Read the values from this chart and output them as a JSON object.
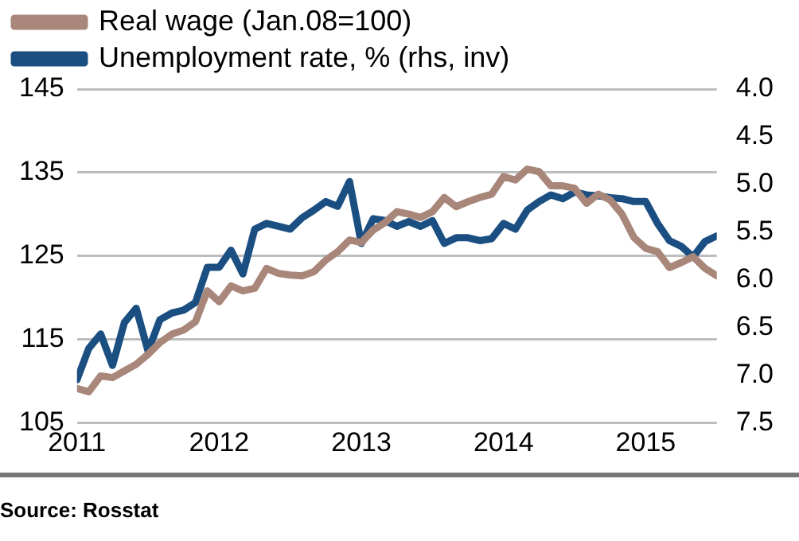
{
  "chart_data": {
    "type": "line",
    "x": [
      "2011-01",
      "2011-02",
      "2011-03",
      "2011-04",
      "2011-05",
      "2011-06",
      "2011-07",
      "2011-08",
      "2011-09",
      "2011-10",
      "2011-11",
      "2011-12",
      "2012-01",
      "2012-02",
      "2012-03",
      "2012-04",
      "2012-05",
      "2012-06",
      "2012-07",
      "2012-08",
      "2012-09",
      "2012-10",
      "2012-11",
      "2012-12",
      "2013-01",
      "2013-02",
      "2013-03",
      "2013-04",
      "2013-05",
      "2013-06",
      "2013-07",
      "2013-08",
      "2013-09",
      "2013-10",
      "2013-11",
      "2013-12",
      "2014-01",
      "2014-02",
      "2014-03",
      "2014-04",
      "2014-05",
      "2014-06",
      "2014-07",
      "2014-08",
      "2014-09",
      "2014-10",
      "2014-11",
      "2014-12",
      "2015-01",
      "2015-02",
      "2015-03",
      "2015-04",
      "2015-05",
      "2015-06",
      "2015-07"
    ],
    "series": [
      {
        "name": "Real wage (Jan.08=100)",
        "color": "#a9867a",
        "axis": "y",
        "values": [
          109.1,
          108.7,
          110.6,
          110.4,
          111.2,
          112.0,
          113.2,
          114.6,
          115.6,
          116.1,
          117.1,
          120.8,
          119.5,
          121.4,
          120.8,
          121.1,
          123.5,
          122.9,
          122.7,
          122.6,
          123.1,
          124.5,
          125.5,
          126.9,
          126.6,
          128.1,
          129.0,
          130.3,
          130.0,
          129.6,
          130.3,
          132.0,
          130.9,
          131.5,
          132.0,
          132.4,
          134.5,
          134.1,
          135.4,
          135.1,
          133.4,
          133.4,
          133.1,
          131.3,
          132.4,
          131.7,
          130.0,
          127.2,
          125.9,
          125.5,
          123.6,
          124.2,
          124.9,
          123.5,
          122.6
        ]
      },
      {
        "name": "Unemployment rate, % (rhs, inv)",
        "color": "#1b4f82",
        "axis": "y2",
        "values": [
          7.05,
          6.72,
          6.57,
          6.9,
          6.45,
          6.3,
          6.75,
          6.42,
          6.35,
          6.32,
          6.24,
          5.87,
          5.87,
          5.69,
          5.94,
          5.47,
          5.41,
          5.44,
          5.47,
          5.35,
          5.27,
          5.18,
          5.23,
          4.97,
          5.62,
          5.36,
          5.38,
          5.44,
          5.39,
          5.44,
          5.38,
          5.62,
          5.56,
          5.56,
          5.59,
          5.57,
          5.41,
          5.47,
          5.27,
          5.18,
          5.11,
          5.15,
          5.08,
          5.11,
          5.12,
          5.14,
          5.15,
          5.18,
          5.18,
          5.41,
          5.59,
          5.65,
          5.76,
          5.6,
          5.54
        ]
      }
    ],
    "xlim": [
      "2011-01",
      "2015-07"
    ],
    "xticks": [
      "2011",
      "2012",
      "2013",
      "2014",
      "2015"
    ],
    "ylim": [
      105,
      145
    ],
    "yticks": [
      105,
      115,
      125,
      135,
      145
    ],
    "y2lim": [
      7.5,
      4.0
    ],
    "y2ticks": [
      {
        "value": 7.5,
        "label": "7.5"
      },
      {
        "value": 7.0,
        "label": "7.0"
      },
      {
        "value": 6.5,
        "label": "6.5"
      },
      {
        "value": 6.0,
        "label": "6.0"
      },
      {
        "value": 5.5,
        "label": "5.5"
      },
      {
        "value": 5.0,
        "label": "5.0"
      },
      {
        "value": 4.5,
        "label": "4.5"
      },
      {
        "value": 4.0,
        "label": "4.0"
      }
    ],
    "grid": "y",
    "legend": "top left",
    "marker": "none",
    "line_style": "solid",
    "annotations": [
      "Source: Rosstat"
    ]
  }
}
